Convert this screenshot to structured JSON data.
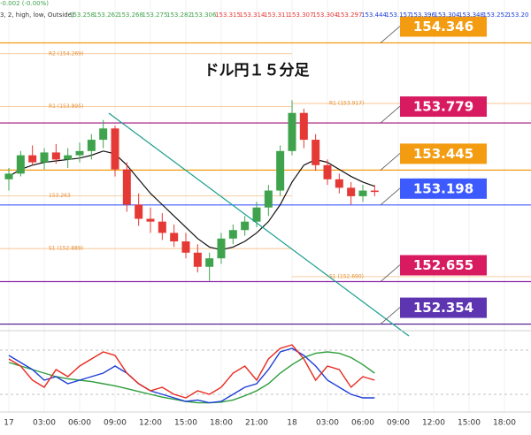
{
  "header": {
    "prefix": "-0.002 (-0.00%)",
    "params": "3, 2, high, low, Outside)",
    "values": [
      "153.258",
      "153.262",
      "153.268",
      "153.275",
      "153.282",
      "153.306",
      "153.315",
      "153.314",
      "153.311",
      "153.307",
      "153.304",
      "153.297",
      "153.444",
      "153.157",
      "153.396",
      "153.304",
      "153.348",
      "153.252",
      "153.20"
    ]
  },
  "chart_data": [
    {
      "type": "candlestick",
      "title": "ドル円１５分足",
      "xlim": [
        -0.75,
        44.25
      ],
      "ylim": [
        152.32,
        154.65
      ],
      "xticks": [
        {
          "value": 0,
          "label": "17"
        },
        {
          "value": 3,
          "label": "03:00"
        },
        {
          "value": 6,
          "label": "06:00"
        },
        {
          "value": 9,
          "label": "09:00"
        },
        {
          "value": 12,
          "label": "12:00"
        },
        {
          "value": 15,
          "label": "15:00"
        },
        {
          "value": 18,
          "label": "18:00"
        },
        {
          "value": 21,
          "label": "21:00"
        },
        {
          "value": 24,
          "label": "18"
        },
        {
          "value": 27,
          "label": "03:00"
        },
        {
          "value": 30,
          "label": "06:00"
        },
        {
          "value": 33,
          "label": "09:00"
        },
        {
          "value": 36,
          "label": "12:00"
        },
        {
          "value": 39,
          "label": "15:00"
        },
        {
          "value": 42,
          "label": "18:00"
        }
      ],
      "up_color": "#3fa34d",
      "down_color": "#e53935",
      "x": [
        0,
        1,
        2,
        3,
        4,
        5,
        6,
        7,
        8,
        9,
        10,
        11,
        12,
        13,
        14,
        15,
        16,
        17,
        18,
        19,
        20,
        21,
        22,
        23,
        24,
        25,
        26,
        27,
        28,
        29,
        30,
        31
      ],
      "open": [
        153.38,
        153.42,
        153.55,
        153.5,
        153.57,
        153.52,
        153.55,
        153.58,
        153.66,
        153.74,
        153.45,
        153.2,
        153.1,
        153.08,
        153.0,
        152.94,
        152.86,
        152.76,
        152.82,
        152.96,
        153.02,
        153.08,
        153.18,
        153.3,
        153.58,
        153.85,
        153.66,
        153.48,
        153.38,
        153.32,
        153.26,
        153.3
      ],
      "high": [
        153.46,
        153.58,
        153.62,
        153.6,
        153.63,
        153.6,
        153.64,
        153.7,
        153.8,
        153.76,
        153.5,
        153.28,
        153.18,
        153.14,
        153.06,
        153.0,
        152.92,
        152.86,
        153.0,
        153.06,
        153.12,
        153.22,
        153.34,
        153.62,
        153.94,
        153.88,
        153.7,
        153.52,
        153.42,
        153.36,
        153.34,
        153.34
      ],
      "low": [
        153.3,
        153.4,
        153.48,
        153.45,
        153.49,
        153.46,
        153.5,
        153.52,
        153.6,
        153.4,
        153.15,
        153.05,
        153.0,
        152.95,
        152.9,
        152.82,
        152.72,
        152.66,
        152.78,
        152.92,
        152.98,
        153.04,
        153.12,
        153.26,
        153.55,
        153.6,
        153.44,
        153.34,
        153.28,
        153.2,
        153.22,
        153.26
      ],
      "close": [
        153.42,
        153.55,
        153.5,
        153.57,
        153.52,
        153.55,
        153.58,
        153.66,
        153.74,
        153.45,
        153.2,
        153.1,
        153.08,
        153.0,
        152.94,
        152.86,
        152.76,
        152.82,
        152.96,
        153.02,
        153.08,
        153.18,
        153.3,
        153.58,
        153.85,
        153.66,
        153.48,
        153.38,
        153.32,
        153.26,
        153.3,
        153.29
      ],
      "overlays": [
        {
          "color": "#111111",
          "values": [
            153.4,
            153.45,
            153.48,
            153.5,
            153.51,
            153.52,
            153.53,
            153.55,
            153.58,
            153.56,
            153.48,
            153.38,
            153.28,
            153.2,
            153.12,
            153.04,
            152.96,
            152.9,
            152.88,
            152.9,
            152.94,
            153.0,
            153.08,
            153.2,
            153.36,
            153.48,
            153.52,
            153.5,
            153.45,
            153.4,
            153.36,
            153.33
          ]
        }
      ],
      "levels": [
        {
          "value": 154.346,
          "color": "#f39c12",
          "line_color": "#f39c12"
        },
        {
          "value": 153.779,
          "color": "#d81b60",
          "line_color": "#a0137a"
        },
        {
          "value": 153.445,
          "color": "#f39c12",
          "line_color": "#f39c12"
        },
        {
          "value": 153.198,
          "color": "#3d5afe",
          "line_color": "#3d5afe"
        },
        {
          "value": 152.655,
          "color": "#d81b60",
          "line_color": "#8e24aa"
        },
        {
          "value": 152.354,
          "color": "#5e35b1",
          "line_color": "#4a148c"
        }
      ],
      "pivots_day1": [
        {
          "label": "R2 (154.269)",
          "value": 154.269
        },
        {
          "label": "R1 (153.895)",
          "value": 153.895
        },
        {
          "label": "153.263",
          "value": 153.263
        },
        {
          "label": "S1 (152.889)",
          "value": 152.889
        }
      ],
      "pivots_day2": [
        {
          "label": "R1 (153.917)",
          "value": 153.917
        },
        {
          "label": "S1 (152.690)",
          "value": 152.69
        }
      ]
    },
    {
      "type": "line",
      "xlim": [
        -0.75,
        44.25
      ],
      "ylim": [
        0,
        100
      ],
      "x": [
        0,
        1,
        2,
        3,
        4,
        5,
        6,
        7,
        8,
        9,
        10,
        11,
        12,
        13,
        14,
        15,
        16,
        17,
        18,
        19,
        20,
        21,
        22,
        23,
        24,
        25,
        26,
        27,
        28,
        29,
        30,
        31
      ],
      "series": [
        {
          "color": "#2e9e3e",
          "values": [
            65,
            60,
            55,
            50,
            45,
            42,
            40,
            38,
            35,
            32,
            28,
            24,
            20,
            16,
            13,
            10,
            8,
            8,
            9,
            12,
            18,
            25,
            35,
            50,
            62,
            72,
            78,
            80,
            78,
            72,
            62,
            50
          ]
        },
        {
          "color": "#1e3fd8",
          "values": [
            75,
            65,
            55,
            40,
            45,
            35,
            40,
            45,
            50,
            60,
            50,
            35,
            25,
            20,
            15,
            10,
            12,
            8,
            10,
            20,
            30,
            35,
            55,
            80,
            85,
            75,
            60,
            40,
            30,
            20,
            15,
            15
          ]
        },
        {
          "color": "#e82a1f",
          "values": [
            70,
            60,
            40,
            30,
            55,
            45,
            60,
            70,
            80,
            75,
            50,
            35,
            25,
            30,
            20,
            15,
            25,
            20,
            30,
            50,
            60,
            40,
            70,
            85,
            90,
            70,
            40,
            60,
            55,
            30,
            45,
            40
          ]
        }
      ]
    }
  ]
}
